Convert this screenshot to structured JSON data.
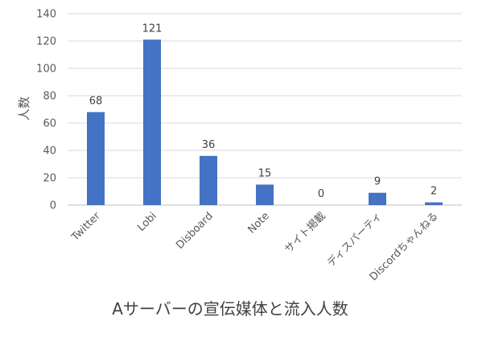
{
  "chart_data": {
    "type": "bar",
    "title": "Aサーバーの宣伝媒体と流入人数",
    "xlabel": "",
    "ylabel": "人数",
    "categories": [
      "Twitter",
      "Lobi",
      "Disboard",
      "Note",
      "サイト掲載",
      "ディスパーティ",
      "Discordちゃんねる"
    ],
    "values": [
      68,
      121,
      36,
      15,
      0,
      9,
      2
    ],
    "ylim": [
      0,
      140
    ],
    "yticks": [
      0,
      20,
      40,
      60,
      80,
      100,
      120,
      140
    ],
    "grid": true,
    "legend": "none",
    "colors": {
      "bar": "#4472C4",
      "grid": "#D9D9D9",
      "axis": "#BFBFBF"
    }
  }
}
